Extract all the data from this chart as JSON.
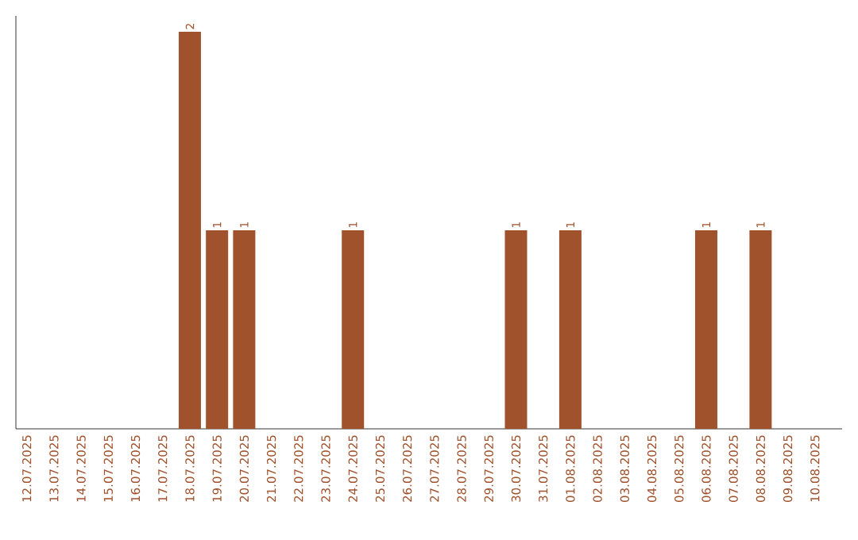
{
  "chart_data": {
    "type": "bar",
    "color": "#a0522d",
    "categories": [
      "12.07.2025",
      "13.07.2025",
      "14.07.2025",
      "15.07.2025",
      "16.07.2025",
      "17.07.2025",
      "18.07.2025",
      "19.07.2025",
      "20.07.2025",
      "21.07.2025",
      "22.07.2025",
      "23.07.2025",
      "24.07.2025",
      "25.07.2025",
      "26.07.2025",
      "27.07.2025",
      "28.07.2025",
      "29.07.2025",
      "30.07.2025",
      "31.07.2025",
      "01.08.2025",
      "02.08.2025",
      "03.08.2025",
      "04.08.2025",
      "05.08.2025",
      "06.08.2025",
      "07.08.2025",
      "08.08.2025",
      "09.08.2025",
      "10.08.2025"
    ],
    "values": [
      0,
      0,
      0,
      0,
      0,
      0,
      2,
      1,
      1,
      0,
      0,
      0,
      1,
      0,
      0,
      0,
      0,
      0,
      1,
      0,
      1,
      0,
      0,
      0,
      0,
      1,
      0,
      1,
      0,
      0
    ],
    "value_labels": [
      null,
      null,
      null,
      null,
      null,
      null,
      "2",
      "1",
      "1",
      null,
      null,
      null,
      "1",
      null,
      null,
      null,
      null,
      null,
      "1",
      null,
      "1",
      null,
      null,
      null,
      null,
      "1",
      null,
      "1",
      null,
      null
    ],
    "ylim": [
      0,
      2.08
    ]
  }
}
